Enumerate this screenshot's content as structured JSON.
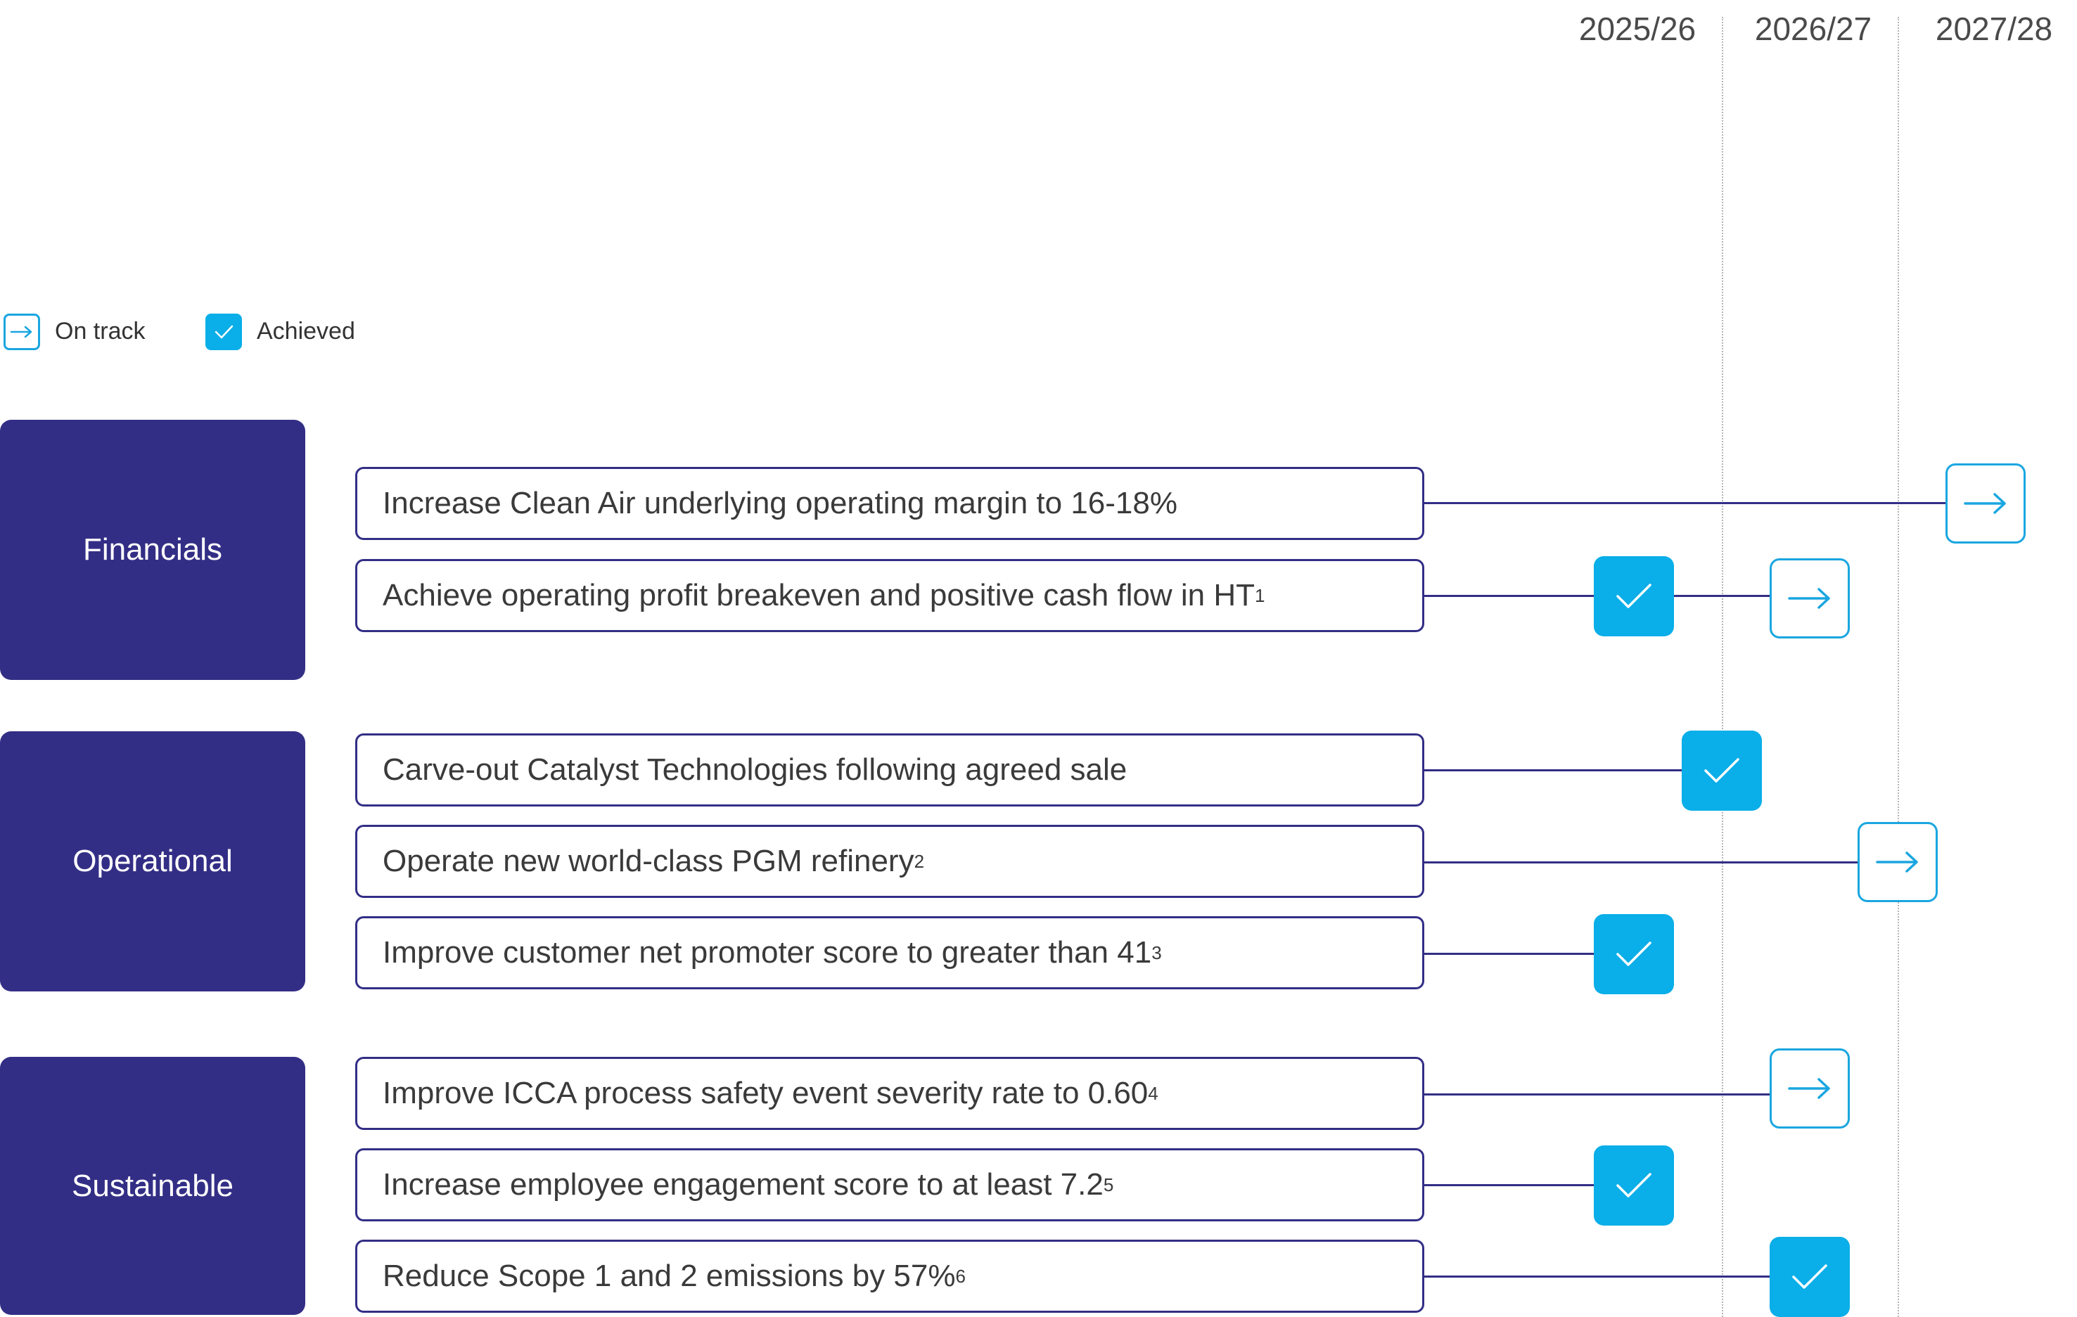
{
  "years": [
    "2025/26",
    "2026/27",
    "2027/28"
  ],
  "legend": [
    {
      "status": "on_track",
      "label": "On track",
      "icon": "arrow-right-icon"
    },
    {
      "status": "achieved",
      "label": "Achieved",
      "icon": "check-icon"
    }
  ],
  "categories": [
    {
      "name": "Financials",
      "goals": [
        {
          "text": "Increase Clean Air underlying operating margin to 16-18%",
          "note": "",
          "markers": [
            {
              "year": "2027/28",
              "status": "on_track"
            }
          ]
        },
        {
          "text": "Achieve operating profit breakeven and positive cash flow in HT",
          "note": "1",
          "markers": [
            {
              "year": "2025/26",
              "status": "achieved"
            },
            {
              "year": "2026/27",
              "status": "on_track"
            }
          ]
        }
      ]
    },
    {
      "name": "Operational",
      "goals": [
        {
          "text": "Carve-out Catalyst Technologies following agreed sale",
          "note": "",
          "markers": [
            {
              "year": "2025/26",
              "status": "achieved"
            }
          ]
        },
        {
          "text": "Operate new world-class PGM refinery",
          "note": "2",
          "markers": [
            {
              "year": "2026/27",
              "status": "on_track"
            }
          ]
        },
        {
          "text": "Improve customer net promoter score to greater than 41",
          "note": "3",
          "markers": [
            {
              "year": "2025/26",
              "status": "achieved"
            }
          ]
        }
      ]
    },
    {
      "name": "Sustainable",
      "goals": [
        {
          "text": "Improve ICCA process safety event severity rate to 0.60",
          "note": "4",
          "markers": [
            {
              "year": "2026/27",
              "status": "on_track"
            }
          ]
        },
        {
          "text": "Increase employee engagement score to at least 7.2",
          "note": "5",
          "markers": [
            {
              "year": "2025/26",
              "status": "achieved"
            }
          ]
        },
        {
          "text": "Reduce Scope 1 and 2 emissions by 57%",
          "note": "6",
          "markers": [
            {
              "year": "2026/27",
              "status": "achieved"
            }
          ]
        }
      ]
    }
  ],
  "colors": {
    "category_fill": "#332e85",
    "goal_border": "#332e85",
    "on_track": "#1aa6e0",
    "achieved": "#0aaee8",
    "text": "#3a3a3a",
    "year_text": "#4a4a4a",
    "divider": "#b5b5b5"
  }
}
